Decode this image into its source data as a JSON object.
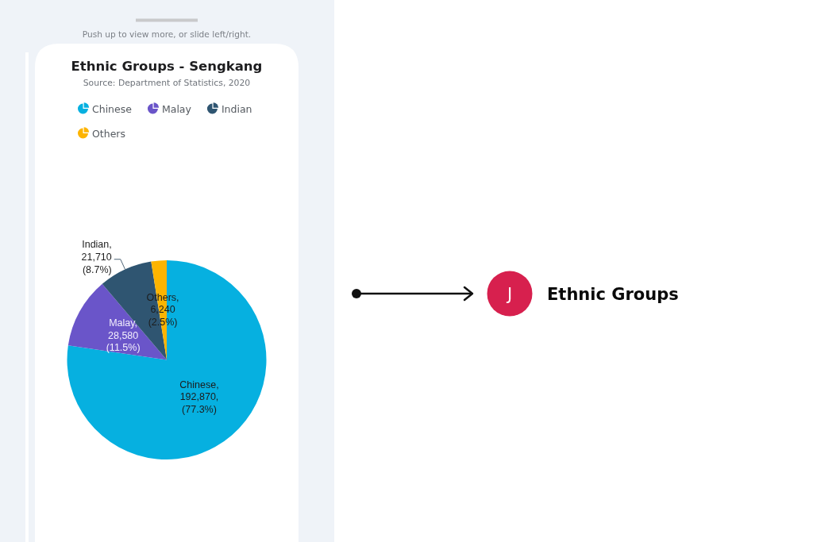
{
  "chart_data": {
    "type": "pie",
    "title": "Ethnic Groups - Sengkang",
    "subtitle": "Source: Department of Statistics, 2020",
    "categories": [
      "Chinese",
      "Malay",
      "Indian",
      "Others"
    ],
    "values": [
      192870,
      28580,
      21710,
      6240
    ],
    "colors": [
      "#06b0e0",
      "#6a55c9",
      "#2f5571",
      "#fdb400"
    ],
    "value_labels": [
      "Chinese,\n192,870,\n(77.3%)",
      "Malay,\n28,580\n(11.5%)",
      "Indian,\n21,710\n(8.7%)",
      "Others,\n6,240\n(2.5%)"
    ],
    "legend": "top",
    "annotations": [
      "Push up to view more, or slide left/right.",
      "J",
      "Ethnic Groups"
    ]
  }
}
